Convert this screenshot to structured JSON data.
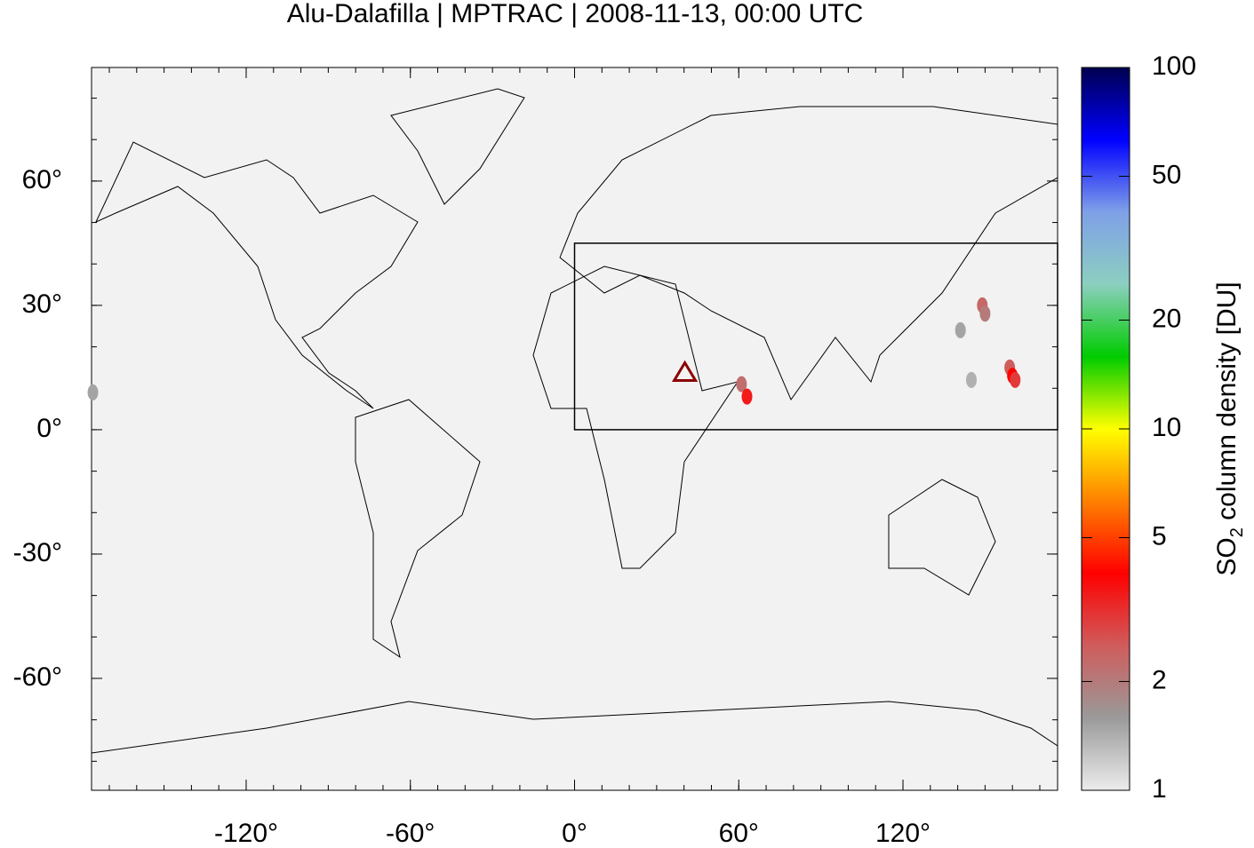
{
  "chart_data": {
    "type": "map",
    "title": "Alu-Dalafilla | MPTRAC | 2008-11-13, 00:00 UTC",
    "xlim": [
      -176.5,
      176.5
    ],
    "ylim": [
      -87,
      87.4
    ],
    "xticks": [
      {
        "value": -120,
        "label": "-120°"
      },
      {
        "value": -60,
        "label": "-60°"
      },
      {
        "value": 0,
        "label": "0°"
      },
      {
        "value": 60,
        "label": "60°"
      },
      {
        "value": 120,
        "label": "120°"
      }
    ],
    "yticks": [
      {
        "value": -60,
        "label": "-60°"
      },
      {
        "value": -30,
        "label": "-30°"
      },
      {
        "value": 0,
        "label": "0°"
      },
      {
        "value": 30,
        "label": "30°"
      },
      {
        "value": 60,
        "label": "60°"
      }
    ],
    "background": "#f2f2f2",
    "region_box": {
      "lon": [
        0,
        176.5
      ],
      "lat": [
        0,
        45
      ]
    },
    "volcano": {
      "lon": 40.3,
      "lat": 13.8,
      "color": "#8b0000"
    },
    "plume": {
      "lon": [
        -176,
        61,
        63,
        149,
        150,
        141,
        145,
        159,
        160,
        161
      ],
      "lat": [
        9,
        11,
        8,
        30,
        28,
        24,
        12,
        15,
        13,
        12
      ],
      "values": [
        1.5,
        2.2,
        3.5,
        2.3,
        2.0,
        1.5,
        1.4,
        2.5,
        4.0,
        3.0
      ]
    },
    "colorbar": {
      "scale": "log",
      "lim": [
        1,
        100
      ],
      "ticks": [
        1,
        2,
        5,
        10,
        20,
        50,
        100
      ],
      "colormap": [
        "#ececec",
        "#9a9a9a",
        "#cf5c5c",
        "#ff0000",
        "#ff8000",
        "#ffff00",
        "#00cc00",
        "#8ccfc0",
        "#7fa0e8",
        "#0000ff",
        "#000050"
      ],
      "label": {
        "text": "SO",
        "subscript": "2",
        "rest": " column density [DU]"
      }
    }
  }
}
